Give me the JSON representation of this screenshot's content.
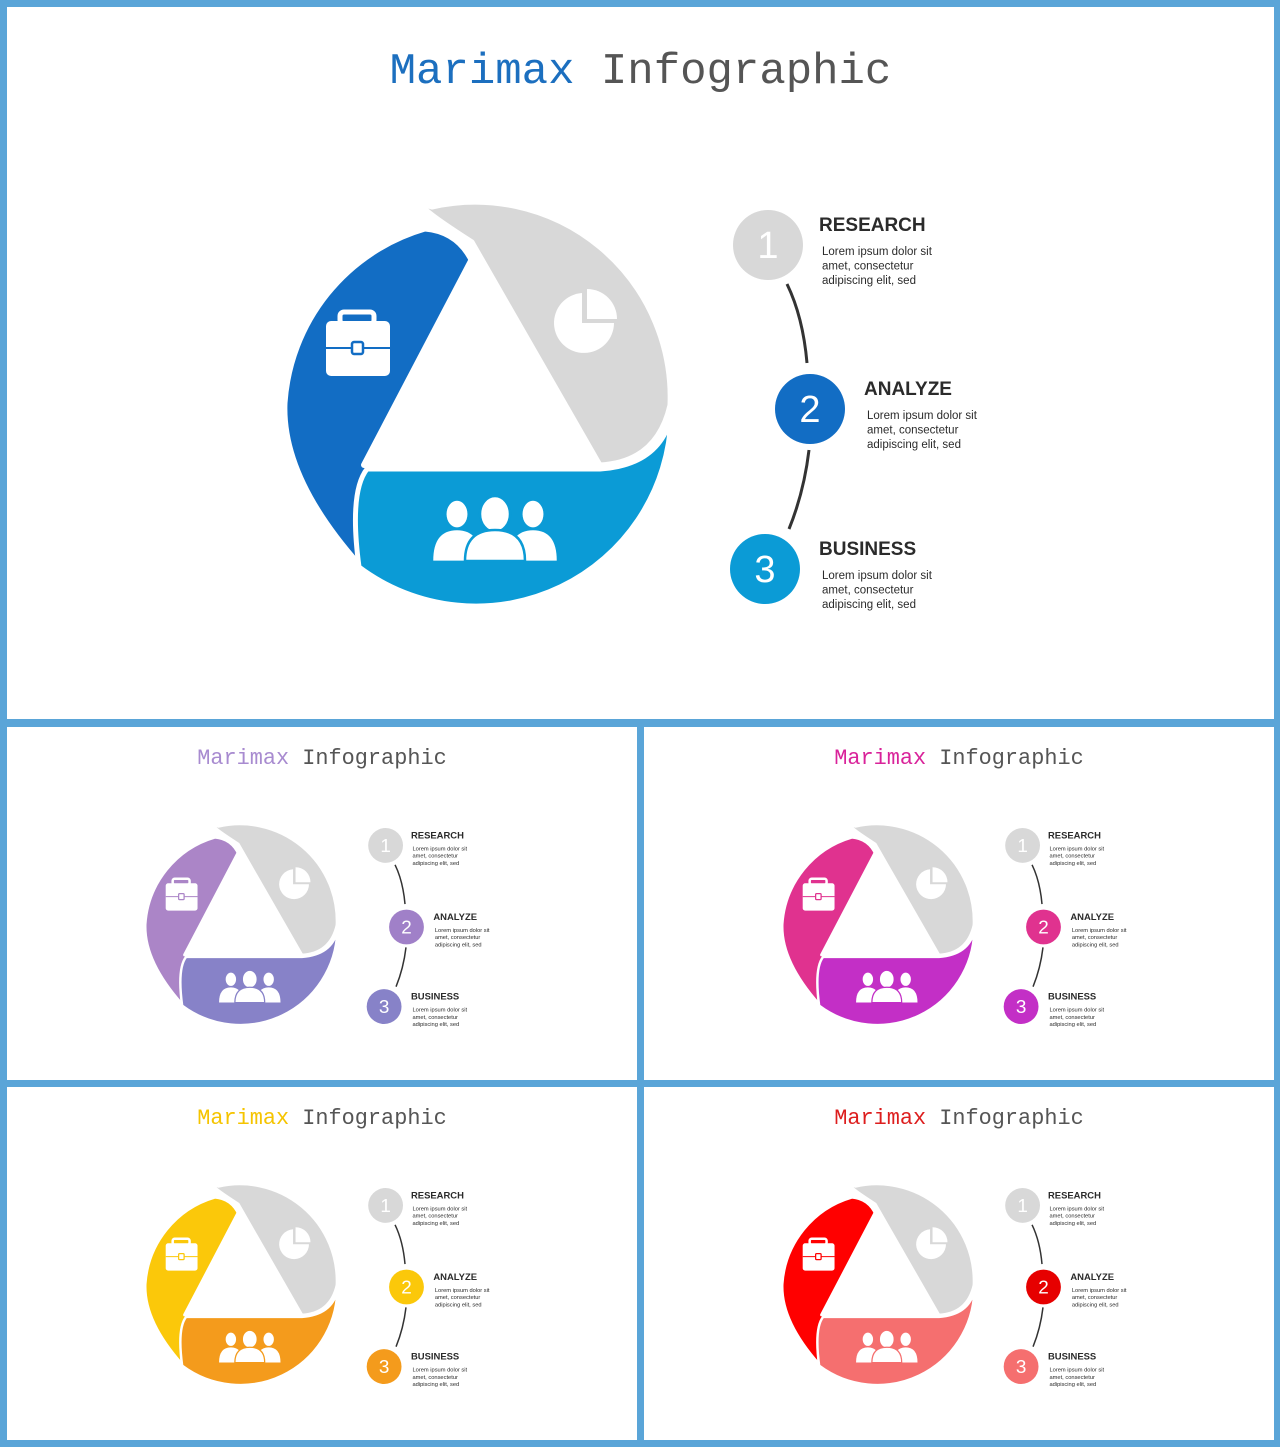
{
  "title": {
    "brand": "Marimax",
    "rest": "Infographic"
  },
  "steps": [
    {
      "number": "1",
      "title": "RESEARCH",
      "lines": [
        "Lorem ipsum dolor sit",
        "amet, consectetur",
        "adipiscing elit, sed"
      ]
    },
    {
      "number": "2",
      "title": "ANALYZE",
      "lines": [
        "Lorem ipsum dolor sit",
        "amet, consectetur",
        "adipiscing elit, sed"
      ]
    },
    {
      "number": "3",
      "title": "BUSINESS",
      "lines": [
        "Lorem ipsum dolor sit",
        "amet, consectetur",
        "adipiscing elit, sed"
      ]
    }
  ],
  "icons": {
    "segment_1": "briefcase-icon",
    "segment_2": "pie-chart-icon",
    "segment_3": "people-group-icon"
  },
  "colors": {
    "neutral": "#d8d8d8",
    "connector": "#333333",
    "text_dark": "#2b2b2b",
    "text_gray": "#555555",
    "frame": "#5aa5d8"
  },
  "variants": [
    {
      "id": "main",
      "brand_color": "#1c6fbf",
      "seg_a": "#126dc4",
      "seg_b": "#0b9bd6",
      "step2": "#126dc4",
      "step3": "#0b9bd6"
    },
    {
      "id": "v1",
      "brand_color": "#a88bd0",
      "seg_a": "#ab85c7",
      "seg_b": "#8782c8",
      "step2": "#a080c8",
      "step3": "#8782c8"
    },
    {
      "id": "v2",
      "brand_color": "#d9239a",
      "seg_a": "#e0328f",
      "seg_b": "#c32fc6",
      "step2": "#e0328f",
      "step3": "#c32fc6"
    },
    {
      "id": "v3",
      "brand_color": "#f5c400",
      "seg_a": "#fbc80a",
      "seg_b": "#f49b1c",
      "step2": "#fbc80a",
      "step3": "#f49b1c"
    },
    {
      "id": "v4",
      "brand_color": "#dd1e1e",
      "seg_a": "#ff0000",
      "seg_b": "#f56f6f",
      "step2": "#e60000",
      "step3": "#f56f6f"
    }
  ]
}
